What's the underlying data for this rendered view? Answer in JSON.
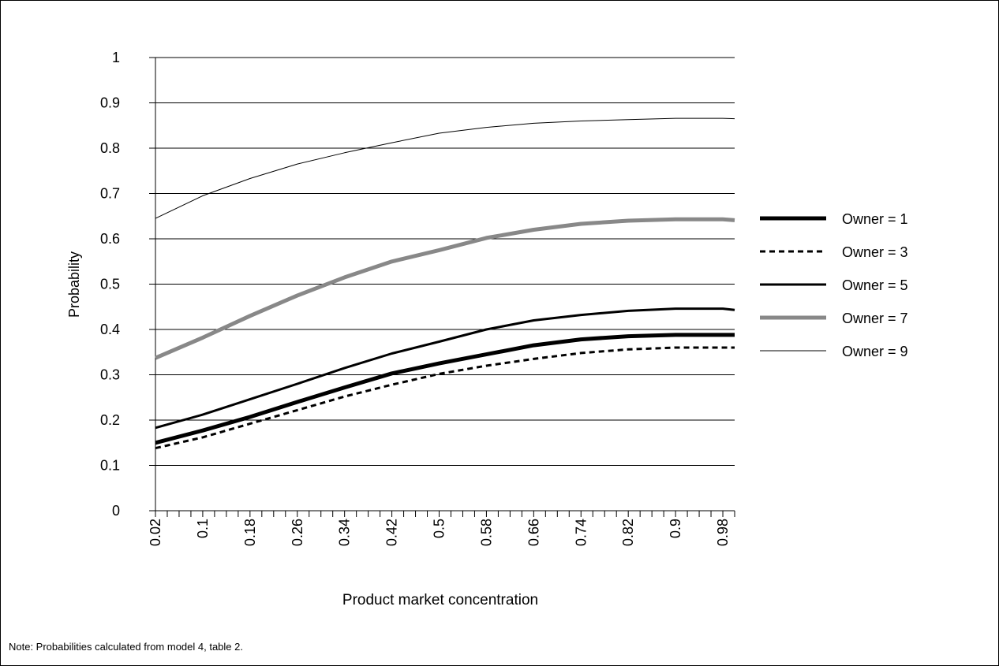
{
  "note": "Note: Probabilities calculated from model 4, table 2.",
  "chart_data": {
    "type": "line",
    "xlabel": "Product market concentration",
    "ylabel": "Probability",
    "ylim": [
      0,
      1
    ],
    "yticks": [
      "0",
      "0.1",
      "0.2",
      "0.3",
      "0.4",
      "0.5",
      "0.6",
      "0.7",
      "0.8",
      "0.9",
      "1"
    ],
    "xlim": [
      0.02,
      1.0
    ],
    "xtick_labels": [
      "0.02",
      "0.1",
      "0.18",
      "0.26",
      "0.34",
      "0.42",
      "0.5",
      "0.58",
      "0.66",
      "0.74",
      "0.82",
      "0.9",
      "0.98"
    ],
    "grid": "horizontal",
    "legend_position": "right",
    "x": [
      0.02,
      0.1,
      0.18,
      0.26,
      0.34,
      0.42,
      0.5,
      0.58,
      0.66,
      0.74,
      0.82,
      0.9,
      0.98,
      1.0
    ],
    "series": [
      {
        "name": "Owner = 1",
        "color": "#000000",
        "style": "thick-solid",
        "values": [
          0.15,
          0.177,
          0.207,
          0.24,
          0.272,
          0.303,
          0.325,
          0.345,
          0.365,
          0.378,
          0.385,
          0.388,
          0.388,
          0.388
        ]
      },
      {
        "name": "Owner = 3",
        "color": "#000000",
        "style": "dashed",
        "values": [
          0.138,
          0.162,
          0.192,
          0.222,
          0.252,
          0.278,
          0.302,
          0.32,
          0.335,
          0.348,
          0.356,
          0.36,
          0.36,
          0.36
        ]
      },
      {
        "name": "Owner = 5",
        "color": "#000000",
        "style": "solid",
        "values": [
          0.183,
          0.212,
          0.246,
          0.28,
          0.315,
          0.347,
          0.373,
          0.4,
          0.42,
          0.432,
          0.441,
          0.446,
          0.446,
          0.443
        ]
      },
      {
        "name": "Owner = 7",
        "color": "#888888",
        "style": "thick-solid",
        "values": [
          0.337,
          0.382,
          0.43,
          0.475,
          0.515,
          0.55,
          0.575,
          0.602,
          0.62,
          0.633,
          0.64,
          0.643,
          0.643,
          0.641
        ]
      },
      {
        "name": "Owner = 9",
        "color": "#000000",
        "style": "thin-solid",
        "values": [
          0.645,
          0.695,
          0.733,
          0.765,
          0.79,
          0.812,
          0.833,
          0.846,
          0.855,
          0.86,
          0.863,
          0.866,
          0.866,
          0.865
        ]
      }
    ]
  }
}
